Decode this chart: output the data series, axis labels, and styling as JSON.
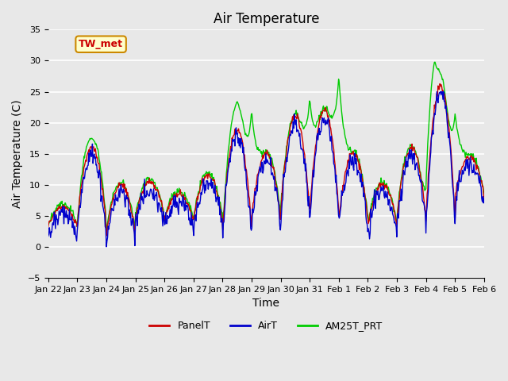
{
  "title": "Air Temperature",
  "xlabel": "Time",
  "ylabel": "Air Temperature (C)",
  "ylim": [
    -5,
    35
  ],
  "yticks": [
    -5,
    0,
    5,
    10,
    15,
    20,
    25,
    30,
    35
  ],
  "xtick_labels": [
    "Jan 22",
    "Jan 23",
    "Jan 24",
    "Jan 25",
    "Jan 26",
    "Jan 27",
    "Jan 28",
    "Jan 29",
    "Jan 30",
    "Jan 31",
    "Feb 1",
    "Feb 2",
    "Feb 3",
    "Feb 4",
    "Feb 5",
    "Feb 6"
  ],
  "background_color": "#e8e8e8",
  "plot_bg_color": "#e8e8e8",
  "grid_color": "#ffffff",
  "panel_color": "#cc0000",
  "air_color": "#0000cc",
  "am25_color": "#00cc00",
  "legend_entries": [
    "PanelT",
    "AirT",
    "AM25T_PRT"
  ],
  "annotation_text": "TW_met",
  "annotation_bg": "#ffffcc",
  "annotation_border": "#cc8800",
  "title_fontsize": 12,
  "axis_fontsize": 10,
  "tick_fontsize": 8,
  "linewidth": 1.0
}
